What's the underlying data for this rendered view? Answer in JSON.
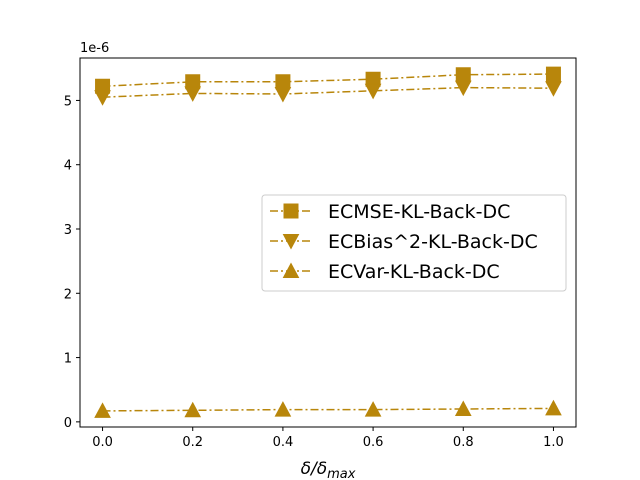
{
  "chart_data": {
    "type": "line",
    "x": [
      0.0,
      0.2,
      0.4,
      0.6,
      0.8,
      1.0
    ],
    "x_ticks": [
      "0.0",
      "0.2",
      "0.4",
      "0.6",
      "0.8",
      "1.0"
    ],
    "y_ticks": [
      "0",
      "1",
      "2",
      "3",
      "4",
      "5"
    ],
    "y_tick_values": [
      0,
      1,
      2,
      3,
      4,
      5
    ],
    "y_offset_label": "1e-6",
    "xlim": [
      -0.05,
      1.05
    ],
    "ylim": [
      -0.08,
      5.66
    ],
    "xlabel_parts": {
      "main": "δ/δ",
      "sub": "max"
    },
    "grid": false,
    "legend_position": "center-right",
    "color": "#b8860b",
    "series": [
      {
        "name": "ECMSE-KL-Back-DC",
        "marker": "square",
        "values": [
          5.22,
          5.29,
          5.29,
          5.33,
          5.4,
          5.41
        ]
      },
      {
        "name": "ECBias^2-KL-Back-DC",
        "marker": "triangle-down",
        "values": [
          5.05,
          5.11,
          5.1,
          5.15,
          5.2,
          5.19
        ]
      },
      {
        "name": "ECVar-KL-Back-DC",
        "marker": "triangle-up",
        "values": [
          0.17,
          0.18,
          0.19,
          0.19,
          0.2,
          0.21
        ]
      }
    ]
  }
}
